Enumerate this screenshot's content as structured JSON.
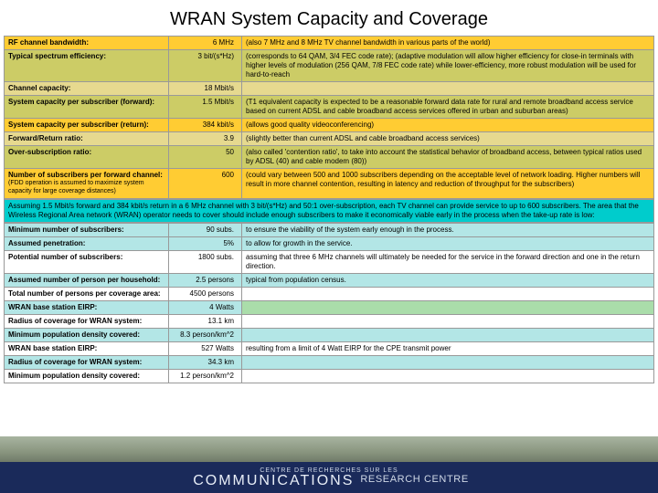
{
  "title": "WRAN System Capacity and Coverage",
  "palette": {
    "gold": "#ffcc33",
    "olive": "#cccc66",
    "lgold": "#e6d98f",
    "cyan": "#00cccc",
    "lcyan": "#b3e6e6",
    "white": "#ffffff",
    "hl": "#aaddaa",
    "footer_band": "#1a2a5a"
  },
  "section1": {
    "rows": [
      {
        "bg": "gold",
        "label": "RF channel bandwidth:",
        "value": "6 MHz",
        "note": "(also 7 MHz and 8 MHz TV channel bandwidth in various parts of the world)"
      },
      {
        "bg": "olive",
        "label": "Typical spectrum efficiency:",
        "value": "3 bit/(s*Hz)",
        "note": "(corresponds to 64 QAM, 3/4 FEC code rate); (adaptive modulation will allow higher efficiency for close-in terminals with higher levels of modulation (256 QAM, 7/8 FEC code rate) while lower-efficiency, more robust modulation will be used for hard-to-reach"
      },
      {
        "bg": "lgold",
        "label": "Channel capacity:",
        "value": "18 Mbit/s",
        "note": ""
      },
      {
        "bg": "olive",
        "label": "System capacity per subscriber (forward):",
        "value": "1.5 Mbit/s",
        "note": "(T1 equivalent capacity is expected to be a reasonable forward data rate for rural and remote broadband access service based on current ADSL and cable broadband access services offered in urban and suburban areas)"
      },
      {
        "bg": "gold",
        "label": "System capacity per subscriber (return):",
        "value": "384 kbit/s",
        "note": "(allows good quality videoconferencing)"
      },
      {
        "bg": "lgold",
        "label": "Forward/Return ratio:",
        "value": "3.9",
        "note": "(slightly better than current ADSL and cable broadband access services)"
      },
      {
        "bg": "olive",
        "label": "Over-subscription ratio:",
        "value": "50",
        "note": "(also called 'contention ratio', to take into account the statistical behavior of broadband access, between typical ratios used by ADSL (40) and cable modem (80))"
      },
      {
        "bg": "gold",
        "label": "Number of subscribers per forward channel:",
        "sublabel": "(FDD operation is assumed to maximize system capacity for large coverage distances)",
        "value": "600",
        "note": "(could vary between 500 and 1000 subscribers depending on the acceptable level of network loading. Higher numbers will result in more channel contention, resulting in latency and reduction of throughput for the subscribers)"
      }
    ]
  },
  "summary_text": "Assuming 1.5 Mbit/s forward and 384 kbit/s return in a 6 MHz channel with 3 bit/(s*Hz) and 50:1 over-subscription, each TV channel can provide service to up to 600 subscribers.  The area that the Wireless Regional Area network (WRAN) operator needs to cover should include enough subscribers to make it economically viable early in the process when the take-up rate is low:",
  "section2": {
    "rows": [
      {
        "bg": "lcyan",
        "label": "Minimum number of subscribers:",
        "value": "90 subs.",
        "note": "to ensure the viability of the system early enough in the process."
      },
      {
        "bg": "lcyan",
        "label": "Assumed penetration:",
        "value": "5%",
        "note": "to allow for growth in the service."
      },
      {
        "bg": "white",
        "label": "Potential number of subscribers:",
        "value": "1800 subs.",
        "note": "assuming that three 6 MHz channels will ultimately be needed for the service in the forward direction and one in the return direction."
      },
      {
        "bg": "lcyan",
        "label": "Assumed number of person per household:",
        "value": "2.5 persons",
        "note": "typical from population census."
      },
      {
        "bg": "white",
        "label": "Total number of persons per coverage area:",
        "value": "4500 persons",
        "note": ""
      },
      {
        "bg": "lcyan",
        "label": "WRAN base station EIRP:",
        "value": "4 Watts",
        "note": "",
        "note_bg": "hl"
      },
      {
        "bg": "white",
        "label": "Radius of coverage for WRAN system:",
        "value": "13.1 km",
        "note": ""
      },
      {
        "bg": "lcyan",
        "label": "Minimum population density covered:",
        "value": "8.3 person/km^2",
        "note": ""
      },
      {
        "bg": "white",
        "label": "WRAN base station EIRP:",
        "value": "527 Watts",
        "note": "resulting from a limit of 4 Watt EIRP for the CPE transmit power"
      },
      {
        "bg": "lcyan",
        "label": "Radius of coverage for WRAN system:",
        "value": "34.3 km",
        "note": ""
      },
      {
        "bg": "white",
        "label": "Minimum population density covered:",
        "value": "1.2 person/km^2",
        "note": ""
      }
    ]
  },
  "footer": {
    "left_small": "CENTRE DE RECHERCHES SUR LES",
    "brand": "COMMUNICATIONS",
    "right": "RESEARCH CENTRE"
  }
}
